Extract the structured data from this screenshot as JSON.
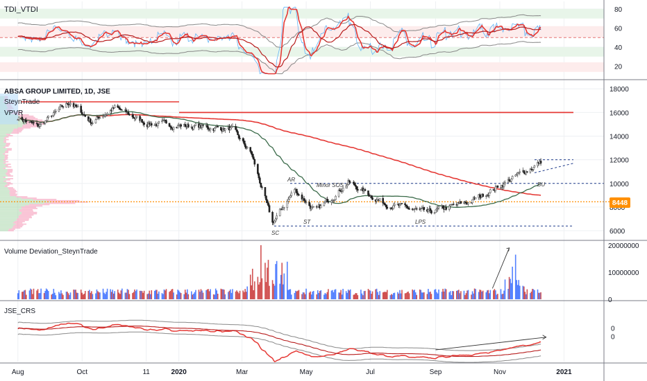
{
  "colors": {
    "up_candle": "#26a69a",
    "down_candle": "#ef5350",
    "candle_dark": "#222222",
    "ma_red": "#e53935",
    "ma_green": "#3b6b4a",
    "band_gray": "#888888",
    "tdi_red": "#e53935",
    "tdi_blue": "#64b5f6",
    "price_line": "#ff8f00",
    "volume_up": "#2962ff",
    "volume_down": "#c62828"
  },
  "panels": {
    "tdi": {
      "label": "TDI_VTDI"
    },
    "price": {
      "title": "ABSA GROUP LIMITED, 1D, JSE",
      "indicator_1": "SteynTrade",
      "indicator_2": "VPVR",
      "current_price_label": "8448"
    },
    "volume": {
      "label": "Volume Deviation_SteynTrade"
    },
    "rs": {
      "label": "JSE_CRS"
    }
  },
  "annotations": {
    "ar": "AR",
    "minor_sos": "Minor SOS",
    "sc": "SC",
    "st": "ST",
    "lps": "LPS",
    "bu": "BU"
  },
  "x_axis": {
    "ticks": [
      "Aug",
      "Oct",
      "11",
      "2020",
      "Mar",
      "May",
      "Jul",
      "Sep",
      "Nov",
      "2021"
    ]
  },
  "chart_data": [
    {
      "type": "line",
      "panel": "tdi",
      "y_ticks": [
        "80",
        "60",
        "40",
        "20"
      ],
      "ylim": [
        8,
        88
      ],
      "bands": [
        [
          70,
          80
        ],
        [
          30,
          40
        ],
        [
          14,
          24
        ]
      ],
      "mid_level": 50
    },
    {
      "type": "candlestick",
      "panel": "price",
      "y_ticks": [
        "18000",
        "16000",
        "14000",
        "12000",
        "10000",
        "8000",
        "6000"
      ],
      "ylim": [
        5300,
        18600
      ],
      "key_closes": [
        {
          "date": "2019-08-01",
          "value": 15600
        },
        {
          "date": "2019-08-20",
          "value": 14800
        },
        {
          "date": "2019-09-20",
          "value": 16900
        },
        {
          "date": "2019-10-10",
          "value": 15200
        },
        {
          "date": "2019-11-01",
          "value": 16400
        },
        {
          "date": "2019-12-01",
          "value": 15100
        },
        {
          "date": "2020-01-20",
          "value": 14800
        },
        {
          "date": "2020-02-20",
          "value": 14600
        },
        {
          "date": "2020-03-10",
          "value": 12500
        },
        {
          "date": "2020-03-30",
          "value": 6600
        },
        {
          "date": "2020-04-20",
          "value": 9500
        },
        {
          "date": "2020-05-10",
          "value": 7600
        },
        {
          "date": "2020-06-10",
          "value": 10100
        },
        {
          "date": "2020-07-15",
          "value": 8300
        },
        {
          "date": "2020-08-25",
          "value": 7500
        },
        {
          "date": "2020-10-05",
          "value": 8500
        },
        {
          "date": "2020-11-05",
          "value": 10000
        },
        {
          "date": "2020-12-10",
          "value": 11800
        }
      ],
      "levels": [
        16900,
        16000,
        10000,
        8448,
        6400,
        12000
      ]
    },
    {
      "type": "bar",
      "panel": "volume",
      "y_ticks": [
        "20000000",
        "10000000",
        "0"
      ],
      "ylim": [
        0,
        21000000
      ]
    },
    {
      "type": "line",
      "panel": "rs",
      "y_ticks": [
        "0",
        "0"
      ],
      "ylim": [
        -4,
        3
      ]
    }
  ]
}
